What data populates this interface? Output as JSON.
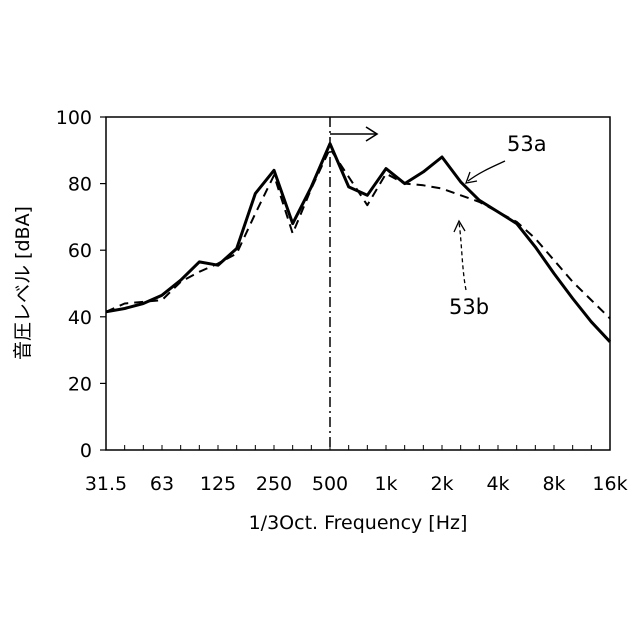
{
  "chart_data": {
    "type": "line",
    "title": "",
    "xlabel": "1/3Oct. Frequency [Hz]",
    "ylabel": "音圧レベル [dBA]",
    "ylim": [
      0,
      100
    ],
    "xlim": [
      31.5,
      16000
    ],
    "x_scale": "log",
    "grid": false,
    "legend": "none",
    "categories": [
      "31.5",
      "40",
      "50",
      "63",
      "80",
      "100",
      "125",
      "160",
      "200",
      "250",
      "315",
      "400",
      "500",
      "630",
      "800",
      "1k",
      "1.25k",
      "1.6k",
      "2k",
      "2.5k",
      "3.15k",
      "4k",
      "5k",
      "6.3k",
      "8k",
      "10k",
      "12.5k",
      "16k"
    ],
    "x_tick_labels": [
      "31.5",
      "63",
      "125",
      "250",
      "500",
      "1k",
      "2k",
      "4k",
      "8k",
      "16k"
    ],
    "y_ticks": [
      0,
      20,
      40,
      60,
      80,
      100
    ],
    "series": [
      {
        "name": "53a",
        "style": "solid",
        "values": [
          41.5,
          42.5,
          44,
          46.5,
          51,
          56.5,
          55.5,
          60.5,
          77,
          84,
          68,
          79,
          92,
          79,
          76.5,
          84.5,
          80,
          83.5,
          88,
          80.5,
          75,
          71.5,
          68,
          61,
          53,
          45.5,
          38.5,
          32.5
        ]
      },
      {
        "name": "53b",
        "style": "dashed",
        "values": [
          41.5,
          44,
          44.5,
          45,
          50.5,
          53.5,
          56,
          59,
          71,
          82.5,
          65,
          78.5,
          90.5,
          82,
          73.5,
          83,
          80,
          79.5,
          78.5,
          76.5,
          74.5,
          71.5,
          68.5,
          63.5,
          57,
          50.5,
          45,
          39.5
        ]
      }
    ],
    "annotations": [
      {
        "text": "53a",
        "series": "53a"
      },
      {
        "text": "53b",
        "series": "53b"
      }
    ],
    "marker_line": {
      "x": "500",
      "style": "dash-dot"
    },
    "arrow": {
      "from": "500",
      "direction": "right"
    }
  }
}
